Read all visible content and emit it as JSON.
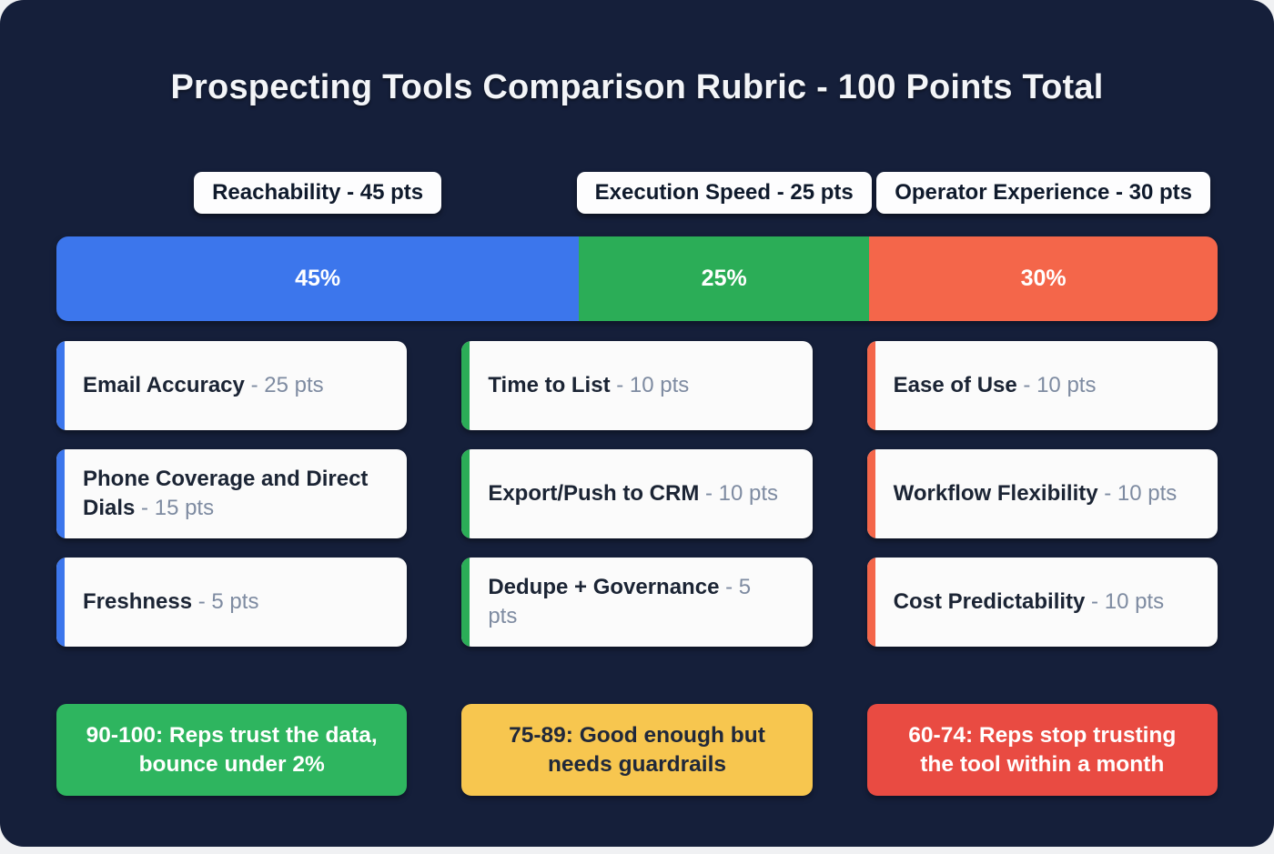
{
  "title": "Prospecting Tools Comparison Rubric - 100 Points Total",
  "ui": {
    "separator": "-"
  },
  "chart_data": {
    "type": "bar",
    "subtype": "horizontal-stacked-100-percent",
    "title": "Prospecting Tools Comparison Rubric - 100 Points Total",
    "categories": [
      "Reachability",
      "Execution Speed",
      "Operator Experience"
    ],
    "values": [
      45,
      25,
      30
    ],
    "value_labels": [
      "45%",
      "25%",
      "30%"
    ],
    "colors": [
      "#3c76ec",
      "#2bad57",
      "#f4664a"
    ],
    "unit": "pts",
    "total_points": 100,
    "xlim": [
      0,
      100
    ],
    "legend_position": "none",
    "grid": false
  },
  "columns": [
    {
      "header": "Reachability - 45 pts",
      "percent_label": "45%",
      "accent_color": "#3c76ec",
      "criteria": [
        {
          "name": "Email Accuracy",
          "points": "25 pts"
        },
        {
          "name": "Phone Coverage and Direct Dials",
          "points": "15 pts"
        },
        {
          "name": "Freshness",
          "points": "5 pts"
        }
      ],
      "callout": {
        "label": "90-100: Reps trust the data, bounce under 2%",
        "bg": "#2eb55f",
        "text_color": "#ffffff"
      }
    },
    {
      "header": "Execution Speed - 25 pts",
      "percent_label": "25%",
      "accent_color": "#2bad57",
      "criteria": [
        {
          "name": "Time to List",
          "points": "10 pts"
        },
        {
          "name": "Export/Push to CRM",
          "points": "10 pts"
        },
        {
          "name": "Dedupe + Governance",
          "points": "5 pts"
        }
      ],
      "callout": {
        "label": "75-89: Good enough but needs guardrails",
        "bg": "#f7c64f",
        "text_color": "#20283a"
      }
    },
    {
      "header": "Operator Experience - 30 pts",
      "percent_label": "30%",
      "accent_color": "#f4664a",
      "criteria": [
        {
          "name": "Ease of Use",
          "points": "10 pts"
        },
        {
          "name": "Workflow Flexibility",
          "points": "10 pts"
        },
        {
          "name": "Cost Predictability",
          "points": "10 pts"
        }
      ],
      "callout": {
        "label": "60-74: Reps stop trusting the tool within a month",
        "bg": "#e94b42",
        "text_color": "#ffffff"
      }
    }
  ],
  "colors": {
    "page_background": "#151f3a",
    "card_background": "#fbfbfb",
    "pill_background": "#fdfdfe",
    "criterion_name_text": "#1b2434",
    "points_text": "#7e8ba1",
    "title_text": "#f3f5f8"
  }
}
